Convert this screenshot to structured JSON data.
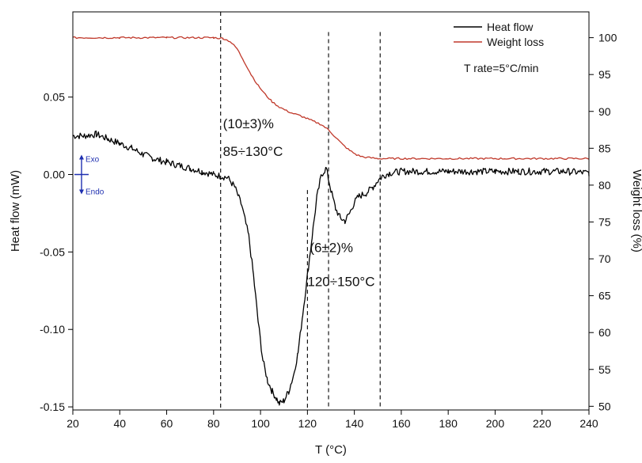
{
  "chart_data": {
    "type": "line",
    "xlabel": "T (°C)",
    "ylabel_left": "Heat flow (mW)",
    "ylabel_right": "Weight loss (%)",
    "xlim": [
      20,
      240
    ],
    "ylim_left": [
      -0.152,
      0.105
    ],
    "ylim_right": [
      49.5,
      103.5
    ],
    "xticks": [
      20,
      40,
      60,
      80,
      100,
      120,
      140,
      160,
      180,
      200,
      220,
      240
    ],
    "yticks_left": [
      0.05,
      0.0,
      -0.05,
      -0.1,
      -0.15
    ],
    "yticks_left_labels": [
      "0.05",
      "0.00",
      "-0.05",
      "-0.10",
      "-0.15"
    ],
    "yticks_right": [
      50,
      55,
      60,
      65,
      70,
      75,
      80,
      85,
      90,
      95,
      100
    ],
    "series": [
      {
        "name": "Heat flow",
        "axis": "left",
        "color": "#000000",
        "x": [
          20,
          25,
          30,
          35,
          40,
          45,
          50,
          55,
          60,
          65,
          70,
          75,
          80,
          83,
          86,
          89,
          92,
          95,
          97,
          99,
          101,
          103,
          105,
          107,
          108,
          110,
          112,
          114,
          116,
          118,
          120,
          122,
          124,
          126,
          128,
          130,
          132,
          134,
          136,
          138,
          140,
          142,
          145,
          148,
          150,
          152,
          155,
          160,
          170,
          180,
          190,
          200,
          210,
          220,
          230,
          240
        ],
        "y": [
          0.025,
          0.025,
          0.026,
          0.023,
          0.02,
          0.017,
          0.013,
          0.01,
          0.008,
          0.006,
          0.004,
          0.002,
          0.0,
          -0.001,
          -0.002,
          -0.008,
          -0.02,
          -0.04,
          -0.065,
          -0.095,
          -0.12,
          -0.133,
          -0.14,
          -0.145,
          -0.148,
          -0.146,
          -0.14,
          -0.13,
          -0.115,
          -0.09,
          -0.065,
          -0.04,
          -0.015,
          0.0,
          0.004,
          -0.01,
          -0.022,
          -0.028,
          -0.03,
          -0.025,
          -0.018,
          -0.014,
          -0.012,
          -0.008,
          -0.004,
          -0.001,
          0.001,
          0.002,
          0.002,
          0.002,
          0.002,
          0.002,
          0.002,
          0.002,
          0.002,
          0.001
        ]
      },
      {
        "name": "Weight loss",
        "axis": "right",
        "color": "#c0392b",
        "x": [
          20,
          40,
          60,
          80,
          84,
          87,
          90,
          93,
          96,
          99,
          102,
          105,
          108,
          111,
          114,
          117,
          120,
          123,
          126,
          129,
          132,
          135,
          138,
          141,
          144,
          150,
          160,
          180,
          200,
          220,
          240
        ],
        "y": [
          100.0,
          100.0,
          100.0,
          100.0,
          99.9,
          99.5,
          98.5,
          96.8,
          95.0,
          93.5,
          92.3,
          91.3,
          90.6,
          90.1,
          89.7,
          89.4,
          89.0,
          88.6,
          88.2,
          87.5,
          86.5,
          85.5,
          84.7,
          84.1,
          83.8,
          83.6,
          83.6,
          83.6,
          83.6,
          83.6,
          83.6
        ]
      }
    ],
    "vlines": [
      {
        "x": 83,
        "y_from": -0.155,
        "y_to": 0.105
      },
      {
        "x": 120,
        "y_from": -0.155,
        "y_to": -0.01
      },
      {
        "x": 129,
        "y_from": -0.155,
        "y_to": 0.092
      },
      {
        "x": 151,
        "y_from": -0.155,
        "y_to": 0.092
      }
    ],
    "annotations": [
      {
        "text": "(10±3)%",
        "x": 84,
        "y": 0.03
      },
      {
        "text": "85÷130°C",
        "x": 84,
        "y": 0.012
      },
      {
        "text": "(6±2)%",
        "x": 121,
        "y": -0.05
      },
      {
        "text": "120÷150°C",
        "x": 120,
        "y": -0.072
      }
    ],
    "exo_endo": {
      "exo": "Exo",
      "endo": "Endo",
      "color": "#1e2fb0"
    },
    "legend": {
      "placement": "top-right",
      "entries": [
        "Heat flow",
        "Weight loss"
      ],
      "note": "T rate=5°C/min"
    },
    "grid": false
  }
}
